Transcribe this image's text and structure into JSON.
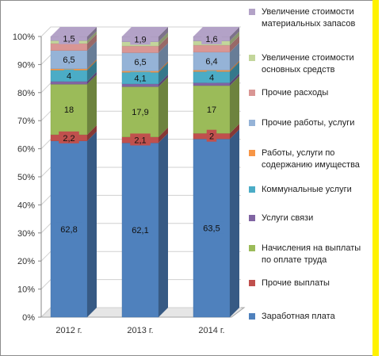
{
  "chart_data": {
    "type": "bar",
    "stacked": true,
    "percent": true,
    "categories": [
      "2012 г.",
      "2013 г.",
      "2014 г."
    ],
    "ylim": [
      0,
      100
    ],
    "yticks": [
      "0%",
      "10%",
      "20%",
      "30%",
      "40%",
      "50%",
      "60%",
      "70%",
      "80%",
      "90%",
      "100%"
    ],
    "legend_position": "right",
    "series": [
      {
        "name": "Заработная плата",
        "color": "#4f81bd",
        "values": [
          62.8,
          62.1,
          63.5
        ],
        "labels": [
          "62,8",
          "62,1",
          "63,5"
        ]
      },
      {
        "name": "Прочие выплаты",
        "color": "#c0504d",
        "values": [
          2.2,
          2.1,
          2.0
        ],
        "labels": [
          "2,2",
          "2,1",
          "2"
        ]
      },
      {
        "name": "Начисления на выплаты по оплате труда",
        "color": "#9bbb59",
        "values": [
          18.0,
          17.9,
          17.0
        ],
        "labels": [
          "18",
          "17,9",
          "17"
        ]
      },
      {
        "name": "Услуги связи",
        "color": "#8064a2",
        "values": [
          1.0,
          1.0,
          1.0
        ],
        "labels": [
          "",
          "",
          ""
        ]
      },
      {
        "name": "Коммунальные услуги",
        "color": "#4bacc6",
        "values": [
          4.0,
          4.1,
          4.0
        ],
        "labels": [
          "4",
          "4,1",
          "4"
        ]
      },
      {
        "name": "Работы, услуги по содержанию имущества",
        "color": "#f79646",
        "values": [
          0.5,
          0.5,
          0.5
        ],
        "labels": [
          "",
          "",
          ""
        ]
      },
      {
        "name": "Прочие работы, услуги",
        "color": "#95b3d7",
        "values": [
          6.5,
          6.5,
          6.4
        ],
        "labels": [
          "6,5",
          "6,5",
          "6,4"
        ]
      },
      {
        "name": "Прочие расходы",
        "color": "#d99694",
        "values": [
          2.5,
          2.4,
          2.5
        ],
        "labels": [
          "",
          "",
          ""
        ]
      },
      {
        "name": "Увеличение стоимости основных средств",
        "color": "#c3d69b",
        "values": [
          1.0,
          1.5,
          1.5
        ],
        "labels": [
          "",
          "",
          ""
        ]
      },
      {
        "name": "Увеличение стоимости материальных запасов",
        "color": "#b3a2c7",
        "values": [
          1.5,
          1.9,
          1.6
        ],
        "labels": [
          "1,5",
          "1,9",
          "1,6"
        ]
      }
    ]
  }
}
